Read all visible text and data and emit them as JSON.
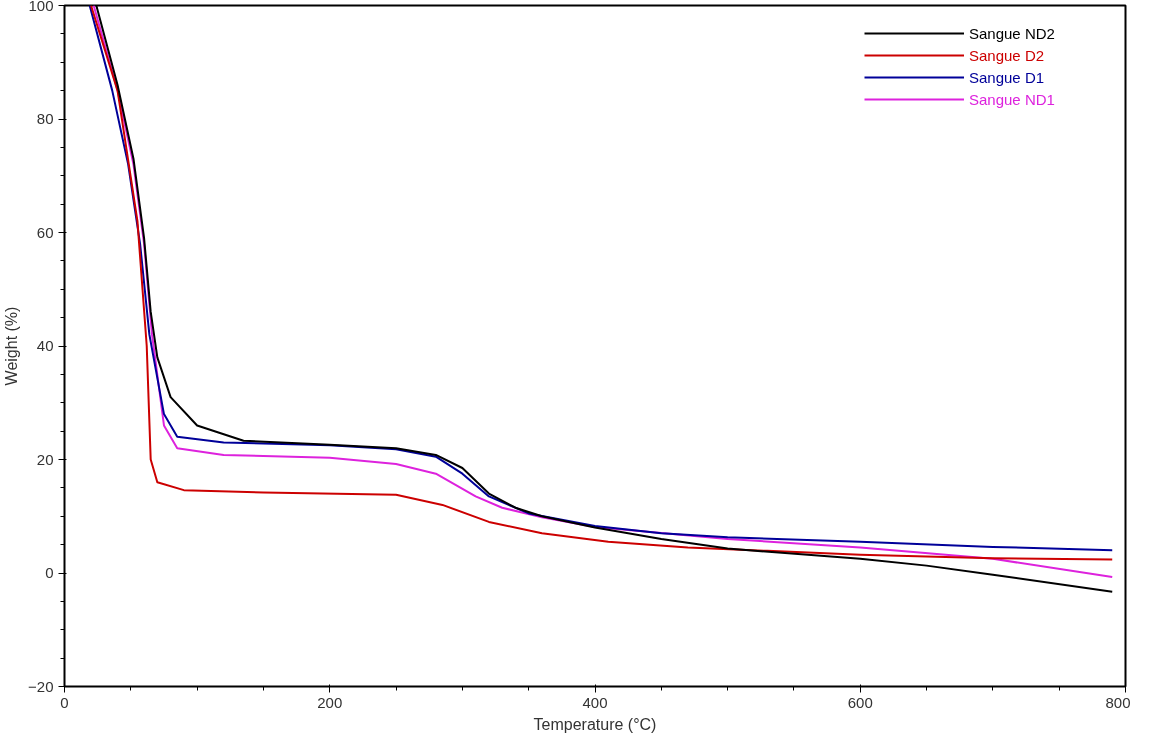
{
  "chart_data": {
    "type": "line",
    "xlabel": "Temperature (°C)",
    "ylabel": "Weight (%)",
    "xlim": [
      0,
      800
    ],
    "ylim": [
      -20,
      100
    ],
    "xticks": [
      0,
      200,
      400,
      600,
      800
    ],
    "yticks": [
      -20,
      0,
      20,
      40,
      60,
      80,
      100
    ],
    "grid": false,
    "legend": "top right",
    "line_style": "solid",
    "marker": "none",
    "series": [
      {
        "name": "Sangue ND2",
        "color": "#000000",
        "x": [
          24,
          40,
          52,
          60,
          65,
          70,
          80,
          100,
          135,
          200,
          250,
          280,
          300,
          320,
          340,
          360,
          400,
          450,
          500,
          600,
          650,
          700,
          790
        ],
        "values": [
          100,
          86,
          73,
          59,
          46,
          38,
          31,
          26,
          23.3,
          22.6,
          22,
          20.8,
          18.5,
          14,
          11.5,
          10,
          8,
          6,
          4.3,
          2.5,
          1.3,
          -0.3,
          -3.3
        ]
      },
      {
        "name": "Sangue D2",
        "color": "#cc0000",
        "x": [
          20,
          40,
          55,
          62,
          65,
          70,
          90,
          150,
          250,
          285,
          320,
          360,
          410,
          470,
          530,
          600,
          700,
          790
        ],
        "values": [
          100,
          85,
          62,
          40,
          20,
          16,
          14.6,
          14.2,
          13.8,
          12,
          9,
          7,
          5.5,
          4.5,
          3.9,
          3.2,
          2.6,
          2.4
        ]
      },
      {
        "name": "Sangue D1",
        "color": "#000099",
        "x": [
          19,
          36,
          48,
          57,
          64,
          75,
          85,
          120,
          200,
          250,
          280,
          300,
          320,
          350,
          400,
          450,
          500,
          600,
          700,
          790
        ],
        "values": [
          100,
          85,
          72,
          58,
          42,
          28,
          24,
          23,
          22.5,
          21.8,
          20.5,
          17.5,
          13.5,
          10.5,
          8.3,
          7,
          6.3,
          5.5,
          4.6,
          4
        ]
      },
      {
        "name": "Sangue ND1",
        "color": "#dd22dd",
        "x": [
          22,
          40,
          52,
          60,
          66,
          75,
          85,
          120,
          200,
          250,
          280,
          310,
          330,
          360,
          400,
          500,
          600,
          700,
          790
        ],
        "values": [
          100,
          85,
          72,
          58,
          42,
          26,
          22,
          20.8,
          20.3,
          19.2,
          17.5,
          13.5,
          11.5,
          9.8,
          8.1,
          6,
          4.5,
          2.5,
          -0.7
        ]
      }
    ]
  }
}
